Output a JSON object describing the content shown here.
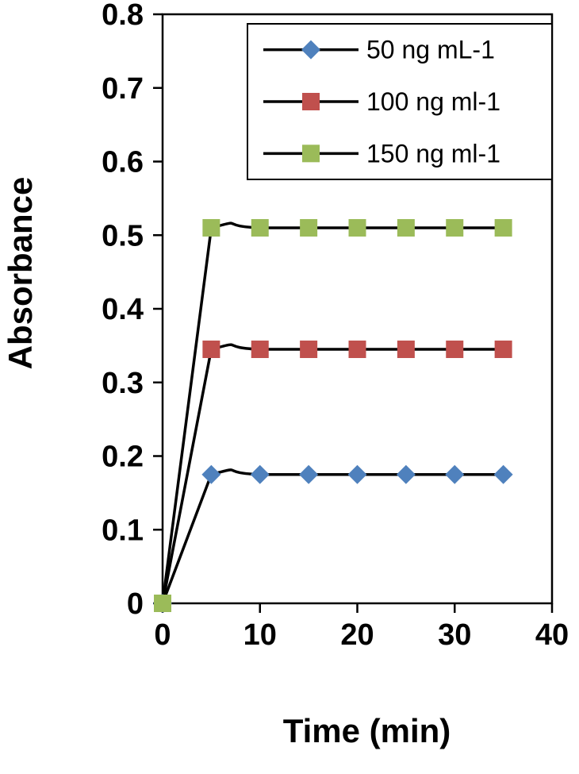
{
  "figure": {
    "background": "#ffffff",
    "axis_color": "#000000"
  },
  "chart_data": {
    "type": "line",
    "title": "",
    "xlabel": "Time (min)",
    "ylabel": "Absorbance",
    "xlim": [
      0,
      40
    ],
    "ylim": [
      0,
      0.8
    ],
    "x_ticks": [
      0,
      10,
      20,
      30,
      40
    ],
    "y_ticks": [
      0,
      0.1,
      0.2,
      0.3,
      0.4,
      0.5,
      0.6,
      0.7,
      0.8
    ],
    "grid": false,
    "legend_position": "top-right-inside",
    "legend_border": true,
    "x": [
      0,
      5,
      10,
      15,
      20,
      25,
      30,
      35
    ],
    "series": [
      {
        "name": "50 ng mL-1",
        "marker": "diamond",
        "marker_color": "#4f81bd",
        "line_color": "#000000",
        "values": [
          0,
          0.175,
          0.175,
          0.175,
          0.175,
          0.175,
          0.175,
          0.175
        ]
      },
      {
        "name": "100 ng ml-1",
        "marker": "square",
        "marker_color": "#c0504d",
        "line_color": "#000000",
        "values": [
          0,
          0.345,
          0.345,
          0.345,
          0.345,
          0.345,
          0.345,
          0.345
        ]
      },
      {
        "name": "150 ng ml-1",
        "marker": "square",
        "marker_color": "#9bbb59",
        "line_color": "#000000",
        "values": [
          0,
          0.51,
          0.51,
          0.51,
          0.51,
          0.51,
          0.51,
          0.51
        ]
      }
    ]
  }
}
